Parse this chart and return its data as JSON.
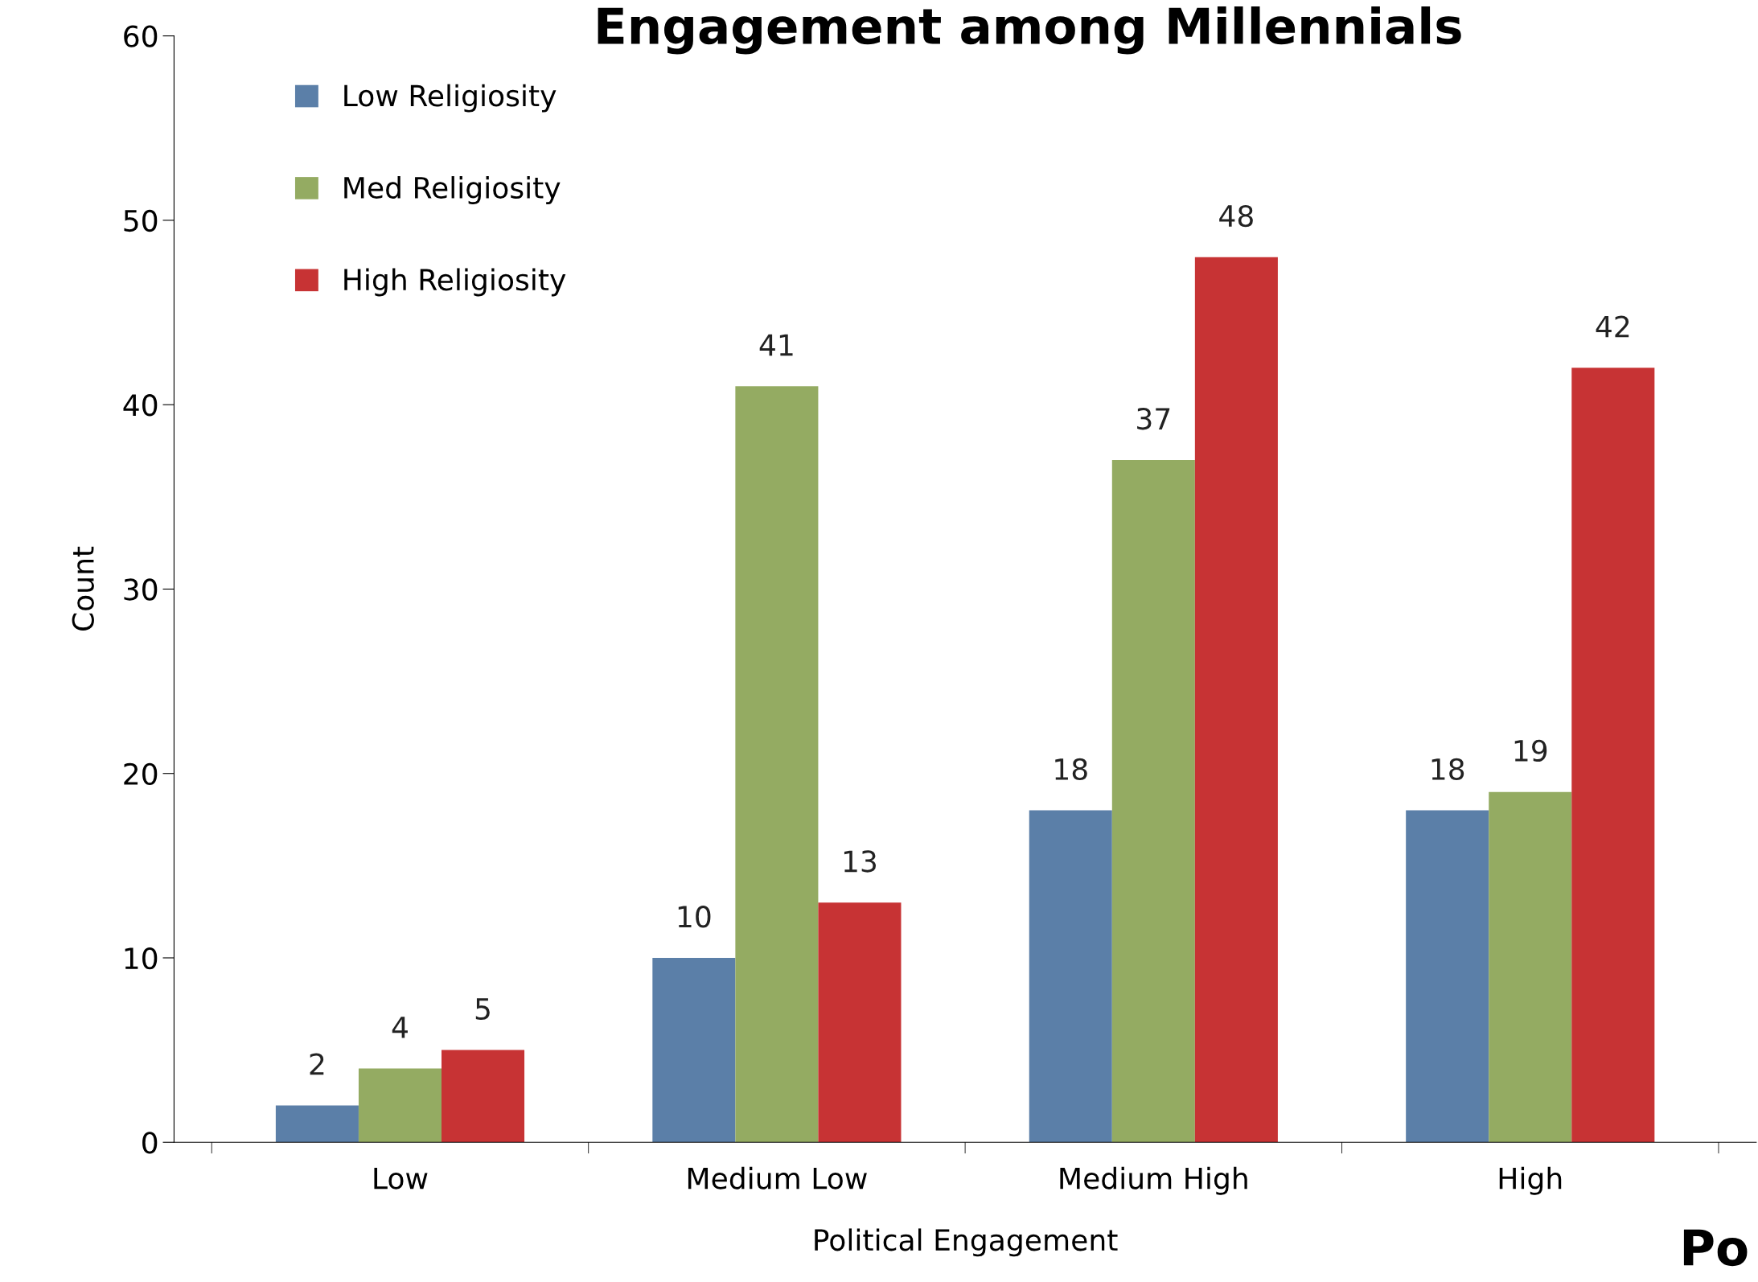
{
  "chart_data": {
    "type": "bar",
    "title": "Engagement among Millennials",
    "xlabel": "Political Engagement",
    "ylabel": "Count",
    "categories": [
      "Low",
      "Medium Low",
      "Medium High",
      "High"
    ],
    "series": [
      {
        "name": "Low Religiosity",
        "color": "#5b7fa8",
        "values": [
          2,
          10,
          18,
          18
        ]
      },
      {
        "name": "Med Religiosity",
        "color": "#94ab62",
        "values": [
          4,
          41,
          37,
          19
        ]
      },
      {
        "name": "High Religiosity",
        "color": "#c73334",
        "values": [
          5,
          13,
          48,
          42
        ]
      }
    ],
    "ylim": [
      0,
      60
    ],
    "yticks": [
      0,
      10,
      20,
      30,
      40,
      50,
      60
    ],
    "data_labels": true,
    "grid": false,
    "legend": "top left",
    "annotations": [
      "Po"
    ]
  }
}
